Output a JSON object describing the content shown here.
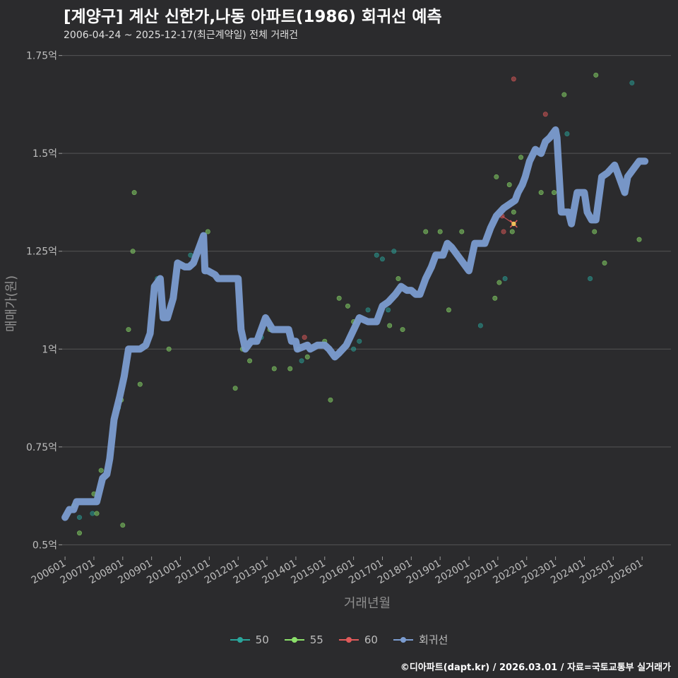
{
  "header": {
    "title": "[계양구] 계산 신한가,나동 아파트(1986) 회귀선 예측",
    "subtitle": "2006-04-24 ~ 2025-12-17(최근계약일) 전체 거래건"
  },
  "source": "©디아파트(dapt.kr) / 2026.03.01 / 자료=국토교통부 실거래가",
  "colors": {
    "background": "#2b2b2d",
    "grid": "#555555",
    "s50": "#2aa59b",
    "s55": "#8be06a",
    "s60": "#e05a5a",
    "regression": "#7b9cd0",
    "highlight": "#f0c05a"
  },
  "chart_data": {
    "type": "scatter",
    "title": "[계양구] 계산 신한가,나동 아파트(1986) 회귀선 예측",
    "subtitle": "2006-04-24 ~ 2025-12-17(최근계약일) 전체 거래건",
    "xlabel": "거래년월",
    "ylabel": "매매가(원)",
    "xlim": [
      2005.9,
      2027.0
    ],
    "ylim": [
      0.47,
      1.78
    ],
    "x_ticks": [
      2006,
      2007,
      2008,
      2009,
      2010,
      2011,
      2012,
      2013,
      2014,
      2015,
      2016,
      2017,
      2018,
      2019,
      2020,
      2021,
      2022,
      2023,
      2024,
      2025,
      2026
    ],
    "x_tick_labels": [
      "200601",
      "200701",
      "200801",
      "200901",
      "201001",
      "201101",
      "201201",
      "201301",
      "201401",
      "201501",
      "201601",
      "201701",
      "201801",
      "201901",
      "202001",
      "202101",
      "202201",
      "202301",
      "202401",
      "202501",
      "202601"
    ],
    "y_ticks": [
      0.5,
      0.75,
      1.0,
      1.25,
      1.5,
      1.75
    ],
    "y_tick_labels": [
      "0.5억",
      "0.75억",
      "1억",
      "1.25억",
      "1.5억",
      "1.75억"
    ],
    "legend": [
      {
        "name": "50",
        "color": "#2aa59b"
      },
      {
        "name": "55",
        "color": "#8be06a"
      },
      {
        "name": "60",
        "color": "#e05a5a"
      },
      {
        "name": "회귀선",
        "color": "#7b9cd0"
      }
    ],
    "series": [
      {
        "name": "50",
        "color": "#2aa59b",
        "points": [
          [
            2006.5,
            0.57
          ],
          [
            2006.95,
            0.58
          ],
          [
            2007.85,
            0.85
          ],
          [
            2009.2,
            1.18
          ],
          [
            2010.35,
            1.24
          ],
          [
            2012.8,
            1.03
          ],
          [
            2014.2,
            0.97
          ],
          [
            2016.0,
            1.0
          ],
          [
            2016.2,
            1.02
          ],
          [
            2016.5,
            1.1
          ],
          [
            2016.8,
            1.24
          ],
          [
            2017.0,
            1.23
          ],
          [
            2017.2,
            1.1
          ],
          [
            2017.4,
            1.25
          ],
          [
            2020.4,
            1.06
          ],
          [
            2021.25,
            1.18
          ],
          [
            2023.4,
            1.55
          ],
          [
            2024.2,
            1.18
          ],
          [
            2025.4,
            1.4
          ],
          [
            2025.65,
            1.68
          ]
        ]
      },
      {
        "name": "55",
        "color": "#8be06a",
        "points": [
          [
            2006.3,
            0.6
          ],
          [
            2006.5,
            0.53
          ],
          [
            2007.0,
            0.63
          ],
          [
            2007.1,
            0.58
          ],
          [
            2007.25,
            0.69
          ],
          [
            2007.95,
            0.87
          ],
          [
            2008.0,
            0.55
          ],
          [
            2008.2,
            1.05
          ],
          [
            2008.35,
            1.25
          ],
          [
            2008.4,
            1.4
          ],
          [
            2008.6,
            0.91
          ],
          [
            2009.6,
            1.0
          ],
          [
            2010.95,
            1.3
          ],
          [
            2011.9,
            0.9
          ],
          [
            2012.15,
            1.0
          ],
          [
            2012.4,
            0.97
          ],
          [
            2013.1,
            1.05
          ],
          [
            2013.25,
            0.95
          ],
          [
            2013.8,
            0.95
          ],
          [
            2014.1,
            1.0
          ],
          [
            2014.4,
            0.98
          ],
          [
            2015.0,
            1.02
          ],
          [
            2015.2,
            0.87
          ],
          [
            2015.5,
            1.13
          ],
          [
            2015.8,
            1.11
          ],
          [
            2016.0,
            1.07
          ],
          [
            2017.25,
            1.06
          ],
          [
            2017.55,
            1.18
          ],
          [
            2017.7,
            1.05
          ],
          [
            2018.5,
            1.3
          ],
          [
            2019.0,
            1.3
          ],
          [
            2019.3,
            1.1
          ],
          [
            2019.75,
            1.3
          ],
          [
            2020.9,
            1.13
          ],
          [
            2020.95,
            1.44
          ],
          [
            2021.05,
            1.17
          ],
          [
            2021.4,
            1.42
          ],
          [
            2021.55,
            1.35
          ],
          [
            2021.5,
            1.3
          ],
          [
            2021.8,
            1.49
          ],
          [
            2022.5,
            1.4
          ],
          [
            2023.3,
            1.65
          ],
          [
            2022.95,
            1.4
          ],
          [
            2024.4,
            1.7
          ],
          [
            2024.35,
            1.3
          ],
          [
            2024.7,
            1.22
          ],
          [
            2025.9,
            1.28
          ]
        ]
      },
      {
        "name": "60",
        "color": "#e05a5a",
        "points": [
          [
            2014.3,
            1.03
          ],
          [
            2021.15,
            1.34
          ],
          [
            2021.2,
            1.3
          ],
          [
            2021.55,
            1.69
          ],
          [
            2022.65,
            1.6
          ]
        ]
      },
      {
        "name": "회귀선",
        "color": "#7b9cd0",
        "x": [
          2006.0,
          2006.15,
          2006.3,
          2006.4,
          2006.55,
          2006.7,
          2006.8,
          2007.1,
          2007.2,
          2007.3,
          2007.45,
          2007.55,
          2007.7,
          2007.9,
          2008.05,
          2008.2,
          2008.6,
          2008.8,
          2008.95,
          2009.1,
          2009.3,
          2009.4,
          2009.55,
          2009.75,
          2009.9,
          2010.15,
          2010.3,
          2010.45,
          2010.8,
          2010.85,
          2010.95,
          2011.2,
          2011.3,
          2012.0,
          2012.1,
          2012.25,
          2012.45,
          2012.65,
          2012.95,
          2013.2,
          2013.35,
          2013.6,
          2013.75,
          2013.85,
          2014.0,
          2014.05,
          2014.4,
          2014.5,
          2014.75,
          2015.0,
          2015.15,
          2015.35,
          2015.5,
          2015.75,
          2016.2,
          2016.5,
          2016.8,
          2017.0,
          2017.2,
          2017.45,
          2017.65,
          2017.85,
          2018.0,
          2018.15,
          2018.3,
          2018.5,
          2018.7,
          2018.85,
          2019.1,
          2019.25,
          2019.4,
          2019.6,
          2019.8,
          2020.0,
          2020.2,
          2020.4,
          2020.55,
          2020.75,
          2020.95,
          2021.2,
          2021.4,
          2021.6,
          2021.7,
          2021.85,
          2021.95,
          2022.1,
          2022.3,
          2022.5,
          2022.65,
          2022.8,
          2023.0,
          2023.05,
          2023.2,
          2023.3,
          2023.45,
          2023.55,
          2023.75,
          2024.0,
          2024.1,
          2024.25,
          2024.4,
          2024.6,
          2024.8,
          2025.05,
          2025.2,
          2025.4,
          2025.5,
          2025.7,
          2025.9,
          2026.1
        ],
        "y": [
          0.57,
          0.59,
          0.59,
          0.61,
          0.61,
          0.61,
          0.61,
          0.61,
          0.64,
          0.67,
          0.68,
          0.72,
          0.82,
          0.88,
          0.93,
          1.0,
          1.0,
          1.01,
          1.04,
          1.16,
          1.18,
          1.08,
          1.08,
          1.13,
          1.22,
          1.21,
          1.21,
          1.22,
          1.29,
          1.2,
          1.2,
          1.19,
          1.18,
          1.18,
          1.05,
          1.0,
          1.02,
          1.02,
          1.08,
          1.05,
          1.05,
          1.05,
          1.05,
          1.02,
          1.02,
          1.0,
          1.01,
          1.0,
          1.01,
          1.01,
          1.0,
          0.98,
          0.99,
          1.01,
          1.08,
          1.07,
          1.07,
          1.11,
          1.12,
          1.14,
          1.16,
          1.15,
          1.15,
          1.14,
          1.14,
          1.18,
          1.21,
          1.24,
          1.24,
          1.27,
          1.26,
          1.24,
          1.22,
          1.2,
          1.27,
          1.27,
          1.27,
          1.31,
          1.34,
          1.36,
          1.37,
          1.38,
          1.4,
          1.42,
          1.44,
          1.48,
          1.51,
          1.5,
          1.53,
          1.54,
          1.56,
          1.54,
          1.35,
          1.35,
          1.35,
          1.32,
          1.4,
          1.4,
          1.35,
          1.33,
          1.33,
          1.44,
          1.45,
          1.47,
          1.44,
          1.4,
          1.44,
          1.46,
          1.48,
          1.48
        ]
      }
    ],
    "highlight_point": [
      2021.55,
      1.32
    ]
  }
}
